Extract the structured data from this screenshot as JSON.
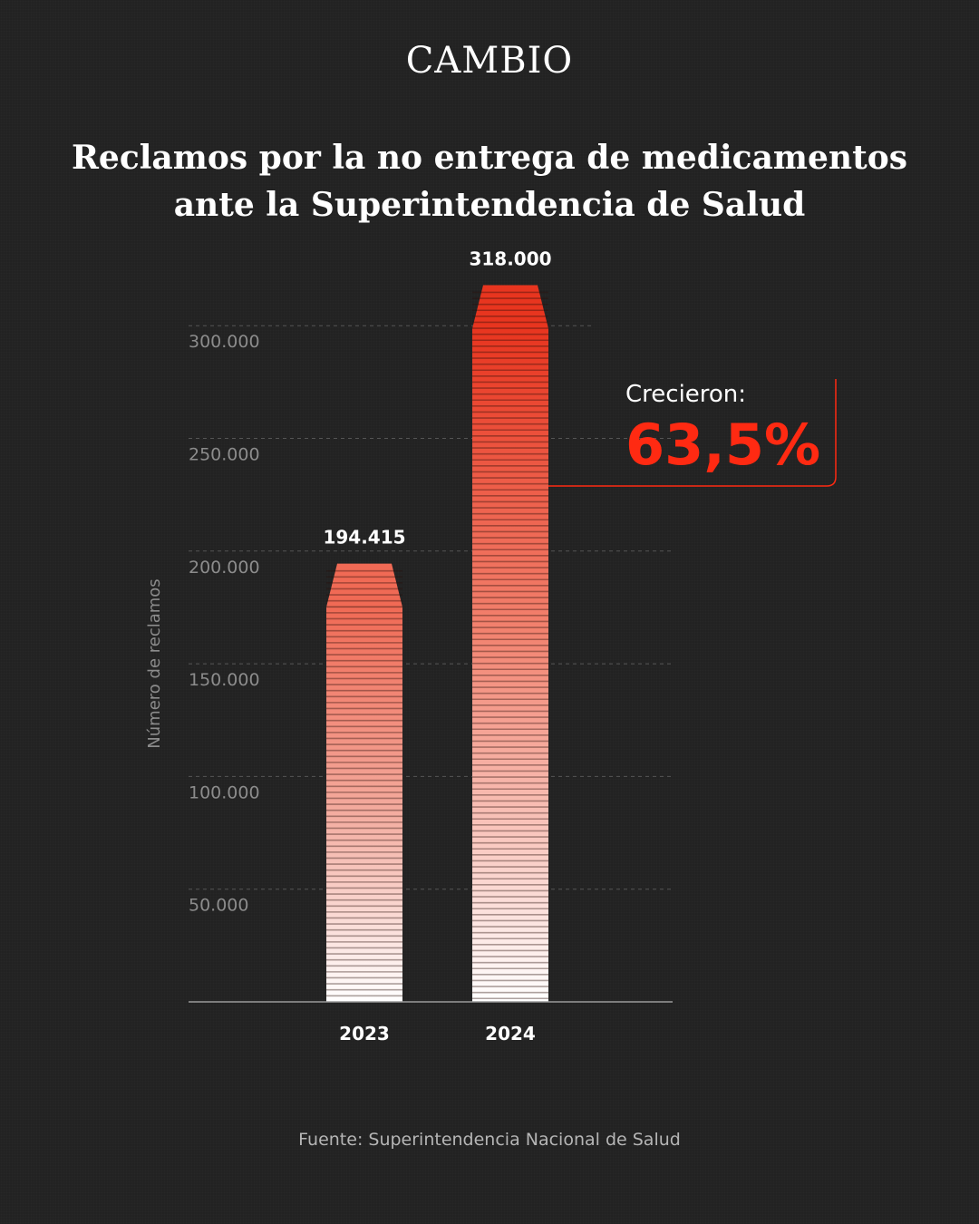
{
  "brand": "CAMBIO",
  "title_line1": "Reclamos por la no entrega de medicamentos",
  "title_line2": "ante la Superintendencia de Salud",
  "source": "Fuente: Superintendencia Nacional de Salud",
  "colors": {
    "accent": "#ff2a12",
    "light_accent": "#ff6f5b",
    "background": "#222222"
  },
  "chart_data": {
    "type": "bar",
    "title": "Reclamos por la no entrega de medicamentos ante la Superintendencia de Salud",
    "categories": [
      "2023",
      "2024"
    ],
    "values": [
      194415,
      318000
    ],
    "value_labels": [
      "194.415",
      "318.000"
    ],
    "ylabel": "Número de reclamos",
    "ylim": [
      0,
      300000
    ],
    "yticks": [
      50000,
      100000,
      150000,
      200000,
      250000,
      300000
    ],
    "ytick_labels": [
      "50.000",
      "100.000",
      "150.000",
      "200.000",
      "250.000",
      "300.000"
    ],
    "grid": true,
    "annotation": {
      "label": "Crecieron:",
      "value": "63,5%"
    }
  }
}
